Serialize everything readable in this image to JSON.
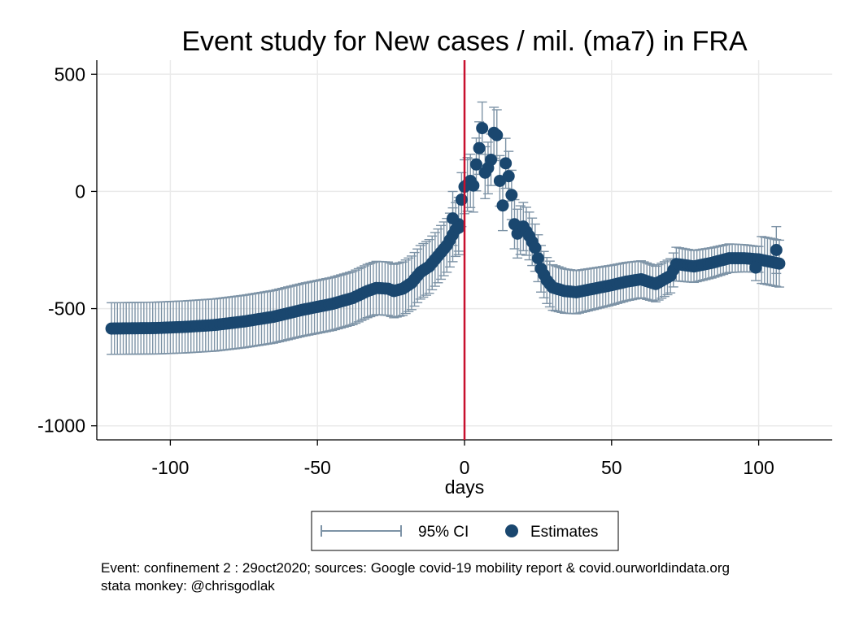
{
  "chart_data": {
    "type": "scatter",
    "title": "Event study for New cases / mil. (ma7) in FRA",
    "xlabel": "days",
    "ylabel": "",
    "xlim": [
      -125,
      125
    ],
    "ylim": [
      -1060,
      560
    ],
    "x_ticks": [
      -100,
      -50,
      0,
      50,
      100
    ],
    "y_ticks": [
      500,
      0,
      -500,
      -1000
    ],
    "grid": true,
    "event_line_x": 0,
    "legend": {
      "position": "bottom",
      "ci_label": "95% CI",
      "estimates_label": "Estimates"
    },
    "anchors": [
      [
        -120,
        -585
      ],
      [
        -105,
        -583
      ],
      [
        -95,
        -578
      ],
      [
        -85,
        -570
      ],
      [
        -75,
        -555
      ],
      [
        -65,
        -535
      ],
      [
        -55,
        -505
      ],
      [
        -45,
        -480
      ],
      [
        -38,
        -455
      ],
      [
        -33,
        -425
      ],
      [
        -30,
        -412
      ],
      [
        -26,
        -415
      ],
      [
        -24,
        -425
      ],
      [
        -21,
        -415
      ],
      [
        -18,
        -390
      ],
      [
        -15,
        -345
      ],
      [
        -12,
        -320
      ],
      [
        -9,
        -275
      ],
      [
        -6,
        -230
      ],
      [
        -4,
        -185
      ],
      [
        -2,
        -140
      ],
      [
        -1,
        -35
      ],
      [
        0,
        20
      ],
      [
        1,
        30
      ],
      [
        2,
        45
      ],
      [
        3,
        25
      ],
      [
        4,
        115
      ],
      [
        5,
        185
      ],
      [
        6,
        270
      ],
      [
        7,
        80
      ],
      [
        8,
        100
      ],
      [
        9,
        135
      ],
      [
        10,
        250
      ],
      [
        11,
        240
      ],
      [
        12,
        45
      ],
      [
        13,
        -60
      ],
      [
        14,
        120
      ],
      [
        15,
        65
      ],
      [
        16,
        -15
      ],
      [
        17,
        -140
      ],
      [
        18,
        -180
      ],
      [
        20,
        -150
      ],
      [
        22,
        -190
      ],
      [
        24,
        -240
      ],
      [
        26,
        -330
      ],
      [
        28,
        -380
      ],
      [
        30,
        -410
      ],
      [
        34,
        -425
      ],
      [
        38,
        -430
      ],
      [
        42,
        -420
      ],
      [
        46,
        -410
      ],
      [
        50,
        -400
      ],
      [
        55,
        -385
      ],
      [
        60,
        -375
      ],
      [
        65,
        -395
      ],
      [
        70,
        -360
      ],
      [
        72,
        -310
      ],
      [
        78,
        -320
      ],
      [
        84,
        -305
      ],
      [
        90,
        -285
      ],
      [
        95,
        -285
      ],
      [
        100,
        -290
      ],
      [
        104,
        -300
      ],
      [
        107,
        -308
      ]
    ],
    "outliers": [
      [
        -4,
        -115
      ],
      [
        -2,
        -155
      ],
      [
        99,
        -325
      ],
      [
        106,
        -250
      ]
    ],
    "ci_halfwidth": {
      "start": 110,
      "peak": 115,
      "end": 55,
      "tail": 100
    }
  },
  "notes": {
    "line1": "Event: confinement 2 : 29oct2020; sources: Google covid-19 mobility report & covid.ourworldindata.org",
    "line2": "stata monkey: @chrisgodlak"
  }
}
